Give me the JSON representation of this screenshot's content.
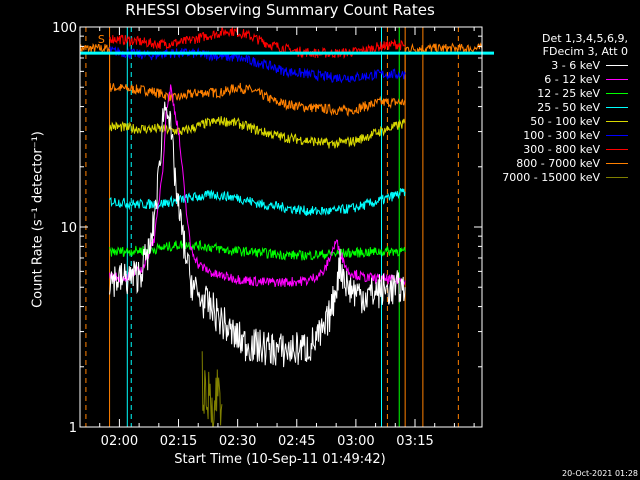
{
  "title": "RHESSI Observing Summary Count Rates",
  "xlabel": "Start Time (10-Sep-11 01:49:42)",
  "ylabel": "Count Rate (s⁻¹ detector⁻¹)",
  "footer": "20-Oct-2021 01:28",
  "legend_header": [
    "Det 1,3,4,5,6,9,",
    "FDecim 3, Att 0"
  ],
  "legend": [
    {
      "label": "3 - 6 keV",
      "color": "#000000"
    },
    {
      "label": "6 - 12 keV",
      "color": "#ff00ff"
    },
    {
      "label": "12 - 25 keV",
      "color": "#00ff00"
    },
    {
      "label": "25 - 50 keV",
      "color": "#00ffff"
    },
    {
      "label": "50 - 100 keV",
      "color": "#d8d800"
    },
    {
      "label": "100 - 300 keV",
      "color": "#0000ff"
    },
    {
      "label": "300 - 800 keV",
      "color": "#ff0000"
    },
    {
      "label": "800 - 7000 keV",
      "color": "#ff8000"
    },
    {
      "label": "7000 - 15000 keV",
      "color": "#808000"
    }
  ],
  "marker_label": "S",
  "chart_data": {
    "type": "line",
    "ylog": true,
    "xlim": [
      0,
      102
    ],
    "ylim": [
      1,
      100
    ],
    "xticks": [
      {
        "x": 10,
        "label": "02:00"
      },
      {
        "x": 25,
        "label": "02:15"
      },
      {
        "x": 40,
        "label": "02:30"
      },
      {
        "x": 55,
        "label": "02:45"
      },
      {
        "x": 70,
        "label": "03:00"
      },
      {
        "x": 85,
        "label": "03:15"
      }
    ],
    "yticks": [
      {
        "y": 1,
        "label": "1"
      },
      {
        "y": 10,
        "label": "10"
      },
      {
        "y": 100,
        "label": "100"
      }
    ],
    "series": [
      {
        "name": "800 - 7000 keV",
        "color": "#ff8000",
        "x": [
          0,
          7.5,
          7.5,
          18,
          24,
          30,
          36,
          40,
          44,
          50,
          56,
          62,
          68,
          72,
          76,
          82.5,
          82.5,
          102
        ],
        "y": [
          78,
          78,
          50,
          48,
          44,
          47,
          47,
          50,
          48,
          42,
          40,
          39,
          38,
          40,
          42,
          42,
          78,
          78
        ]
      },
      {
        "name": "300 - 800 keV",
        "color": "#ff0000",
        "x": [
          7.5,
          14,
          20,
          26,
          32,
          38,
          42,
          48,
          54,
          60,
          66,
          72,
          76,
          80,
          82.5
        ],
        "y": [
          88,
          85,
          82,
          84,
          90,
          96,
          92,
          82,
          76,
          74,
          74,
          76,
          80,
          82,
          80
        ]
      },
      {
        "name": "100 - 300 keV",
        "color": "#0000ff",
        "x": [
          7.5,
          12,
          18,
          22,
          28,
          34,
          40,
          46,
          52,
          58,
          64,
          70,
          76,
          82.5
        ],
        "y": [
          76,
          74,
          72,
          74,
          74,
          72,
          70,
          66,
          60,
          58,
          56,
          56,
          58,
          58
        ]
      },
      {
        "name": "50 - 100 keV",
        "color": "#d8d800",
        "x": [
          7.5,
          14,
          20,
          26,
          32,
          36,
          40,
          46,
          52,
          58,
          64,
          70,
          76,
          82.5
        ],
        "y": [
          32,
          31,
          31,
          30,
          33,
          34,
          33,
          30,
          28,
          27,
          26,
          27,
          30,
          33
        ]
      },
      {
        "name": "25 - 50 keV",
        "color": "#00ffff",
        "x": [
          7.5,
          14,
          20,
          24,
          28,
          34,
          40,
          46,
          52,
          58,
          64,
          70,
          76,
          82.5
        ],
        "y": [
          13.5,
          13,
          13,
          13.5,
          14,
          14.5,
          14,
          13,
          12.5,
          12,
          12,
          12.5,
          13.5,
          15
        ]
      },
      {
        "name": "12 - 25 keV",
        "color": "#00ff00",
        "x": [
          7.5,
          14,
          20,
          26,
          32,
          38,
          44,
          50,
          56,
          62,
          68,
          74,
          80,
          82.5
        ],
        "y": [
          7.5,
          7.6,
          7.8,
          8.2,
          8.0,
          7.6,
          7.5,
          7.3,
          7.2,
          7.3,
          7.4,
          7.5,
          7.6,
          7.5
        ]
      },
      {
        "name": "6 - 12 keV",
        "color": "#ff00ff",
        "x": [
          7.5,
          12,
          16,
          19,
          21,
          22,
          23,
          25,
          27,
          28,
          30,
          34,
          40,
          46,
          52,
          58,
          62,
          65,
          66,
          68,
          72,
          76,
          82.5
        ],
        "y": [
          5.6,
          5.6,
          6.2,
          9,
          20,
          40,
          50,
          30,
          12,
          8,
          6.5,
          5.8,
          5.5,
          5.3,
          5.3,
          5.4,
          6.0,
          8.5,
          7.5,
          6.0,
          5.6,
          5.5,
          5.4
        ]
      },
      {
        "name": "3 - 6 keV",
        "color": "#000000",
        "x": [
          7.5,
          12,
          15,
          18,
          20,
          21,
          22,
          23,
          25,
          27,
          28,
          30,
          34,
          38,
          42,
          46,
          52,
          58,
          62,
          64,
          66,
          68,
          72,
          76,
          82.5
        ],
        "y": [
          5.5,
          5.5,
          5.8,
          8,
          18,
          35,
          45,
          30,
          12,
          7,
          5.5,
          4.5,
          3.8,
          3.0,
          2.6,
          2.5,
          2.4,
          2.5,
          3.0,
          4.0,
          6.5,
          5.0,
          4.5,
          4.8,
          5.0
        ]
      },
      {
        "name": "7000 - 15000 keV",
        "color": "#808000",
        "x": [
          31,
          32,
          33,
          34,
          35,
          36
        ],
        "y": [
          1.8,
          1.2,
          1.6,
          1.1,
          1.7,
          1.3
        ]
      }
    ],
    "vlines": [
      {
        "x": 1.5,
        "color": "#ff8000",
        "style": "dash"
      },
      {
        "x": 7.5,
        "color": "#ff8000",
        "style": "solid"
      },
      {
        "x": 12,
        "color": "#00ffff",
        "style": "solid"
      },
      {
        "x": 13,
        "color": "#00ffff",
        "style": "dash"
      },
      {
        "x": 76.5,
        "color": "#00ffff",
        "style": "solid"
      },
      {
        "x": 78,
        "color": "#ff8000",
        "style": "dash"
      },
      {
        "x": 81,
        "color": "#00ff00",
        "style": "solid"
      },
      {
        "x": 82.5,
        "color": "#ff8000",
        "style": "solid"
      },
      {
        "x": 87,
        "color": "#ff8000",
        "style": "solid"
      },
      {
        "x": 96,
        "color": "#ff8000",
        "style": "dash"
      }
    ],
    "hlines": [
      {
        "y": 74,
        "color": "#00ffff",
        "width": 3
      }
    ]
  }
}
